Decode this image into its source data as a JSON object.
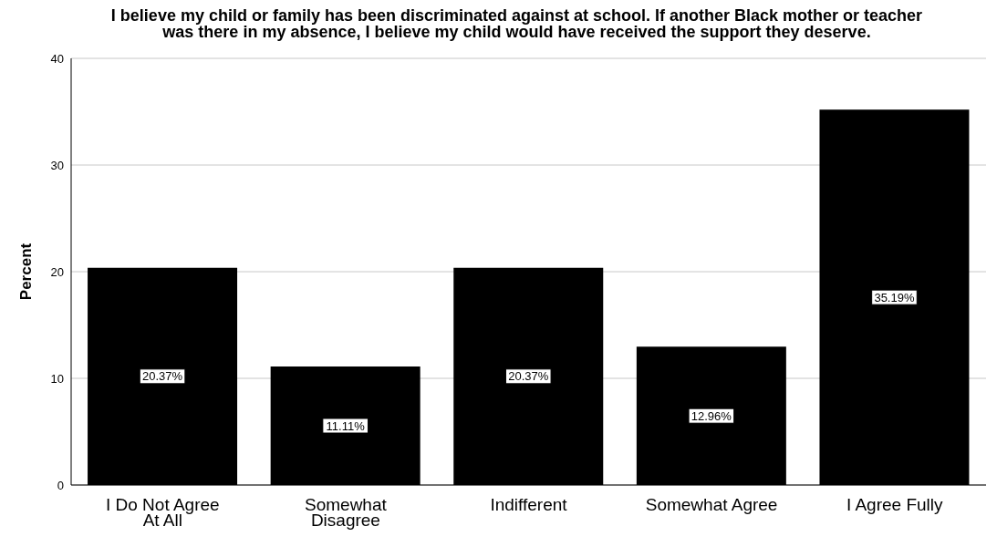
{
  "chart_data": {
    "type": "bar",
    "title": "I believe my child or family has been discriminated against at school. If another Black mother or teacher was there in my absence, I believe my child would have received the support they deserve.",
    "ylabel": "Percent",
    "categories": [
      "I Do Not Agree At All",
      "Somewhat Disagree",
      "Indifferent",
      "Somewhat Agree",
      "I Agree Fully"
    ],
    "values": [
      20.37,
      11.11,
      20.37,
      12.96,
      35.19
    ],
    "value_labels": [
      "20.37%",
      "11.11%",
      "20.37%",
      "12.96%",
      "35.19%"
    ],
    "color": "#000000",
    "ylim": [
      0,
      40
    ],
    "yticks": [
      0,
      10,
      20,
      30,
      40
    ],
    "grid": "y"
  }
}
